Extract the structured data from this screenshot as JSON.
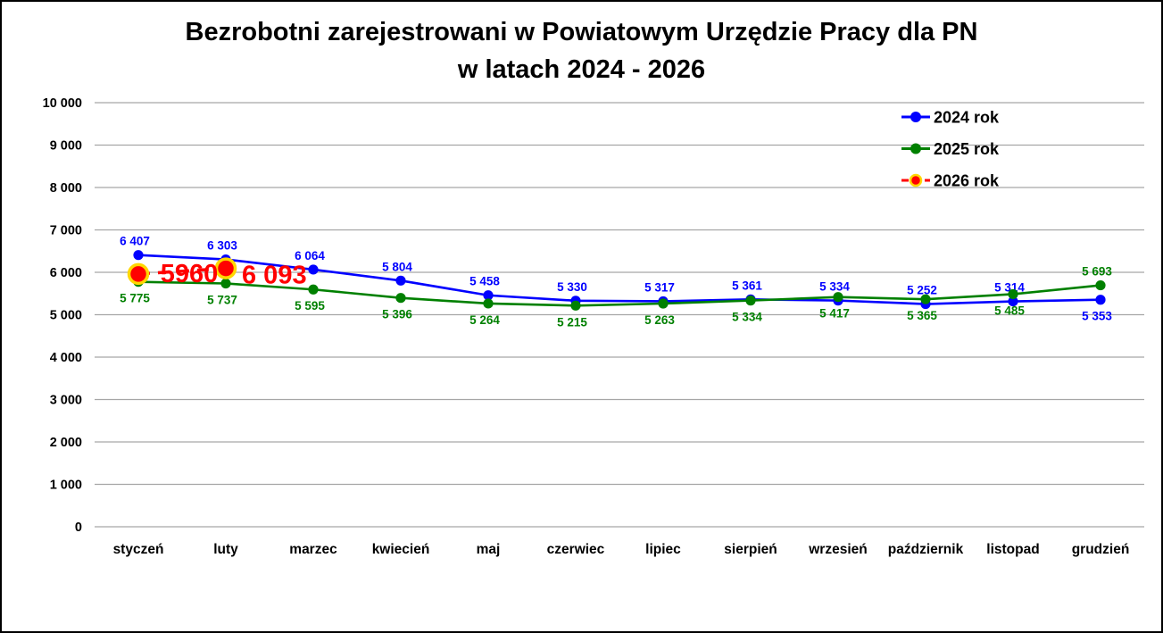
{
  "frame": {
    "background": "#ffffff",
    "border_color": "#000000"
  },
  "chart_data": {
    "type": "line",
    "title": "Bezrobotni zarejestrowani w Powiatowym Urzędzie Pracy dla PN",
    "title_line2": "w latach 2024 - 2026",
    "categories": [
      "styczeń",
      "luty",
      "marzec",
      "kwiecień",
      "maj",
      "czerwiec",
      "lipiec",
      "sierpień",
      "wrzesień",
      "październik",
      "listopad",
      "grudzień"
    ],
    "xlabel": "",
    "ylabel": "",
    "ylim": [
      0,
      10000
    ],
    "y_tick_step": 1000,
    "y_ticks": [
      {
        "value": 0,
        "label": "0"
      },
      {
        "value": 1000,
        "label": "1 000"
      },
      {
        "value": 2000,
        "label": "2 000"
      },
      {
        "value": 3000,
        "label": "3 000"
      },
      {
        "value": 4000,
        "label": "4 000"
      },
      {
        "value": 5000,
        "label": "5 000"
      },
      {
        "value": 6000,
        "label": "6 000"
      },
      {
        "value": 7000,
        "label": "7 000"
      },
      {
        "value": 8000,
        "label": "8 000"
      },
      {
        "value": 9000,
        "label": "9 000"
      },
      {
        "value": 10000,
        "label": "10 000"
      }
    ],
    "grid": true,
    "gridline_color": "#A6A6A6",
    "legend_position": "top-right",
    "series": [
      {
        "name": "2024 rok",
        "color": "#0000FF",
        "line_style": "solid",
        "marker": "circle",
        "values": [
          6407,
          6303,
          6064,
          5804,
          5458,
          5330,
          5317,
          5361,
          5334,
          5252,
          5314,
          5353
        ],
        "labels": [
          "6 407",
          "6 303",
          "6 064",
          "5 804",
          "5 458",
          "5 330",
          "5 317",
          "5 361",
          "5 334",
          "5 252",
          "5 314",
          "5 353"
        ],
        "label_side": [
          "above",
          "above",
          "above",
          "above",
          "above",
          "above",
          "above",
          "above",
          "above",
          "above",
          "above",
          "below"
        ]
      },
      {
        "name": "2025 rok",
        "color": "#008000",
        "line_style": "solid",
        "marker": "circle",
        "values": [
          5775,
          5737,
          5595,
          5396,
          5264,
          5215,
          5263,
          5334,
          5417,
          5365,
          5485,
          5693
        ],
        "labels": [
          "5 775",
          "5 737",
          "5 595",
          "5 396",
          "5 264",
          "5 215",
          "5 263",
          "5 334",
          "5 417",
          "5 365",
          "5 485",
          "5 693"
        ],
        "label_side": [
          "below",
          "below",
          "below",
          "below",
          "below",
          "below",
          "below",
          "below",
          "below",
          "below",
          "below",
          "above"
        ]
      },
      {
        "name": "2026 rok",
        "color": "#FF0000",
        "marker_ring_color": "#FFD700",
        "line_style": "dashed",
        "marker": "circle-large",
        "values": [
          5960,
          6093,
          null,
          null,
          null,
          null,
          null,
          null,
          null,
          null,
          null,
          null
        ],
        "labels": [
          "5960",
          "6 093",
          "",
          "",
          "",
          "",
          "",
          "",
          "",
          "",
          "",
          ""
        ],
        "label_side": [
          "right-on-line",
          "right-of-point",
          "",
          "",
          "",
          "",
          "",
          "",
          "",
          "",
          "",
          ""
        ]
      }
    ]
  }
}
